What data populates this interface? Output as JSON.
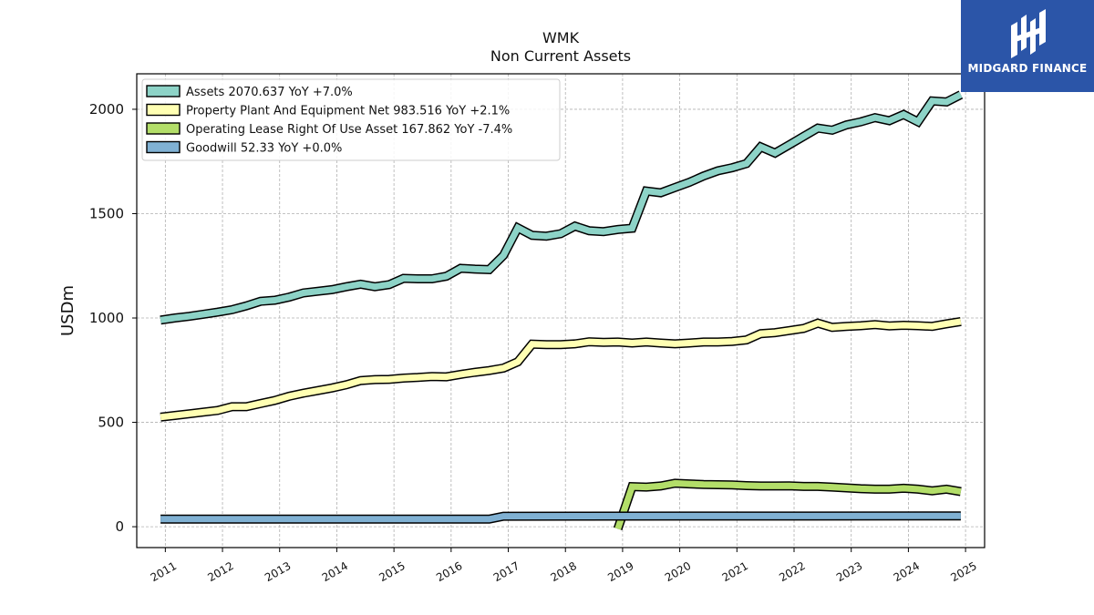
{
  "header": {
    "ticker": "WMK",
    "subtitle": "Non Current  Assets"
  },
  "brand": {
    "name": "MIDGARD FINANCE",
    "color": "#2b55a8"
  },
  "chart_data": {
    "type": "line",
    "ylabel": "USDm",
    "xlabel": "",
    "x_ticks": [
      "2011",
      "2012",
      "2013",
      "2014",
      "2015",
      "2016",
      "2017",
      "2018",
      "2019",
      "2020",
      "2021",
      "2022",
      "2023",
      "2024",
      "2025"
    ],
    "y_ticks": [
      0,
      500,
      1000,
      1500,
      2000
    ],
    "ylim": [
      -100,
      2170
    ],
    "xlim": [
      "2010-07",
      "2025-05"
    ],
    "grid": true,
    "legend_position": "upper-left",
    "series": [
      {
        "name": "Assets",
        "legend": "Assets  2070.637 YoY +7.0%",
        "color": "#8dd3c7",
        "x": [
          "2010-12",
          "2011-03",
          "2011-06",
          "2011-09",
          "2011-12",
          "2012-03",
          "2012-06",
          "2012-09",
          "2012-12",
          "2013-03",
          "2013-06",
          "2013-09",
          "2013-12",
          "2014-03",
          "2014-06",
          "2014-09",
          "2014-12",
          "2015-03",
          "2015-06",
          "2015-09",
          "2015-12",
          "2016-03",
          "2016-06",
          "2016-09",
          "2016-12",
          "2017-03",
          "2017-06",
          "2017-09",
          "2017-12",
          "2018-03",
          "2018-06",
          "2018-09",
          "2018-12",
          "2019-03",
          "2019-06",
          "2019-09",
          "2019-12",
          "2020-03",
          "2020-06",
          "2020-09",
          "2020-12",
          "2021-03",
          "2021-06",
          "2021-09",
          "2021-12",
          "2022-03",
          "2022-06",
          "2022-09",
          "2022-12",
          "2023-03",
          "2023-06",
          "2023-09",
          "2023-12",
          "2024-03",
          "2024-06",
          "2024-09",
          "2024-12"
        ],
        "values": [
          990,
          1000,
          1008,
          1018,
          1028,
          1040,
          1058,
          1080,
          1085,
          1100,
          1120,
          1128,
          1136,
          1150,
          1162,
          1150,
          1160,
          1190,
          1188,
          1188,
          1200,
          1238,
          1234,
          1232,
          1300,
          1432,
          1396,
          1392,
          1404,
          1440,
          1418,
          1414,
          1424,
          1430,
          1608,
          1600,
          1625,
          1650,
          1680,
          1705,
          1720,
          1740,
          1820,
          1790,
          1830,
          1870,
          1910,
          1900,
          1925,
          1940,
          1960,
          1945,
          1975,
          1940,
          2040,
          2035,
          2070
        ]
      },
      {
        "name": "Property Plant And Equipment Net",
        "legend": "Property Plant And Equipment Net  983.516 YoY +2.1%",
        "color": "#ffffb3",
        "x": [
          "2010-12",
          "2011-03",
          "2011-06",
          "2011-09",
          "2011-12",
          "2012-03",
          "2012-06",
          "2012-09",
          "2012-12",
          "2013-03",
          "2013-06",
          "2013-09",
          "2013-12",
          "2014-03",
          "2014-06",
          "2014-09",
          "2014-12",
          "2015-03",
          "2015-06",
          "2015-09",
          "2015-12",
          "2016-03",
          "2016-06",
          "2016-09",
          "2016-12",
          "2017-03",
          "2017-06",
          "2017-09",
          "2017-12",
          "2018-03",
          "2018-06",
          "2018-09",
          "2018-12",
          "2019-03",
          "2019-06",
          "2019-09",
          "2019-12",
          "2020-03",
          "2020-06",
          "2020-09",
          "2020-12",
          "2021-03",
          "2021-06",
          "2021-09",
          "2021-12",
          "2022-03",
          "2022-06",
          "2022-09",
          "2022-12",
          "2023-03",
          "2023-06",
          "2023-09",
          "2023-12",
          "2024-03",
          "2024-06",
          "2024-09",
          "2024-12"
        ],
        "values": [
          525,
          533,
          541,
          549,
          557,
          575,
          575,
          590,
          605,
          625,
          640,
          652,
          665,
          680,
          700,
          705,
          706,
          712,
          715,
          720,
          718,
          730,
          740,
          748,
          760,
          790,
          875,
          872,
          872,
          876,
          886,
          883,
          885,
          880,
          885,
          880,
          876,
          880,
          885,
          885,
          888,
          895,
          925,
          930,
          940,
          950,
          975,
          955,
          960,
          963,
          968,
          962,
          965,
          963,
          960,
          972,
          983
        ]
      },
      {
        "name": "Operating Lease Right Of Use Asset",
        "legend": "Operating Lease Right Of Use Asset  167.862 YoY -7.4%",
        "color": "#b3de69",
        "x": [
          "2018-12",
          "2019-03",
          "2019-06",
          "2019-09",
          "2019-12",
          "2020-03",
          "2020-06",
          "2020-09",
          "2020-12",
          "2021-03",
          "2021-06",
          "2021-09",
          "2021-12",
          "2022-03",
          "2022-06",
          "2022-09",
          "2022-12",
          "2023-03",
          "2023-06",
          "2023-09",
          "2023-12",
          "2024-03",
          "2024-06",
          "2024-09",
          "2024-12"
        ],
        "values": [
          -10,
          192,
          190,
          195,
          208,
          205,
          202,
          201,
          200,
          197,
          195,
          195,
          196,
          193,
          193,
          190,
          186,
          182,
          180,
          180,
          184,
          180,
          172,
          180,
          168
        ]
      },
      {
        "name": "Goodwill",
        "legend": "Goodwill  52.33 YoY +0.0%",
        "color": "#80b1d3",
        "x": [
          "2010-12",
          "2016-09",
          "2016-12",
          "2024-12"
        ],
        "values": [
          36,
          36,
          50,
          52
        ]
      }
    ]
  }
}
